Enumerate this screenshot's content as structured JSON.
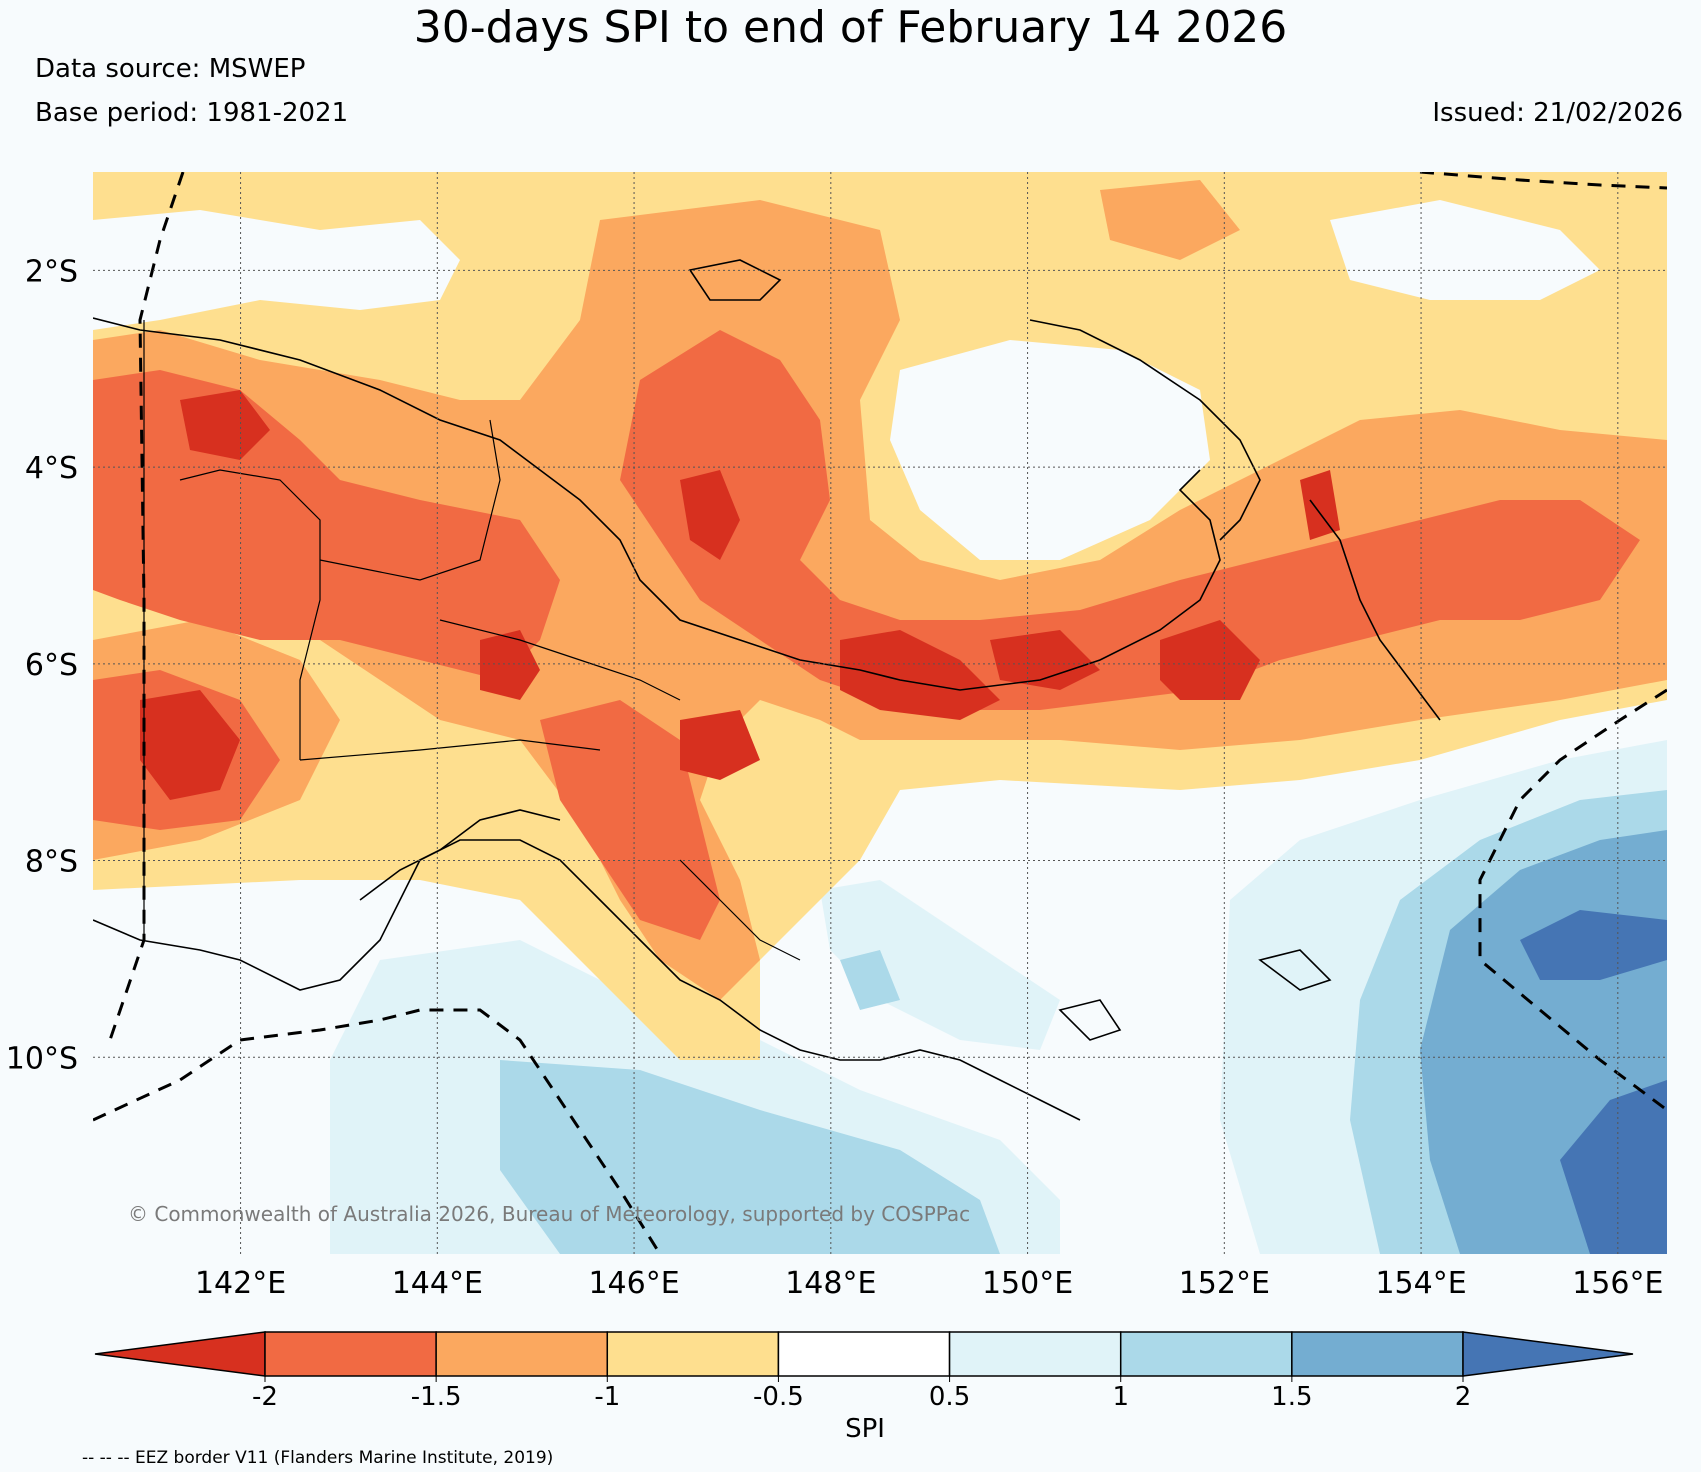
{
  "title": "30-days SPI to end of February 14 2026",
  "data_source": "Data source: MSWEP",
  "base_period": "Base period: 1981-2021",
  "issued": "Issued: 21/02/2026",
  "copyright": "© Commonwealth of Australia 2026, Bureau of Meteorology, supported by COSPPac",
  "eez_note": "-- -- -- EEZ border V11 (Flanders Marine Institute, 2019)",
  "map": {
    "lon_range": [
      140.5,
      156.5
    ],
    "lat_range": [
      -12.0,
      -1.0
    ],
    "lat_ticks": [
      {
        "value": -2,
        "label": "2°S"
      },
      {
        "value": -4,
        "label": "4°S"
      },
      {
        "value": -6,
        "label": "6°S"
      },
      {
        "value": -8,
        "label": "8°S"
      },
      {
        "value": -10,
        "label": "10°S"
      }
    ],
    "lon_ticks": [
      {
        "value": 142,
        "label": "142°E"
      },
      {
        "value": 144,
        "label": "144°E"
      },
      {
        "value": 146,
        "label": "146°E"
      },
      {
        "value": 148,
        "label": "148°E"
      },
      {
        "value": 150,
        "label": "150°E"
      },
      {
        "value": 152,
        "label": "152°E"
      },
      {
        "value": 154,
        "label": "154°E"
      },
      {
        "value": 156,
        "label": "156°E"
      }
    ],
    "gridlines": true
  },
  "colorbar": {
    "title": "SPI",
    "ticks": [
      "-2",
      "-1.5",
      "-1",
      "-0.5",
      "0.5",
      "1",
      "1.5",
      "2"
    ],
    "colors": [
      "#d7301f",
      "#f16a43",
      "#fba85f",
      "#fedf8f",
      "#ffffff",
      "#e0f3f8",
      "#abd9e9",
      "#74add1",
      "#4575b4"
    ],
    "extend": "both"
  }
}
